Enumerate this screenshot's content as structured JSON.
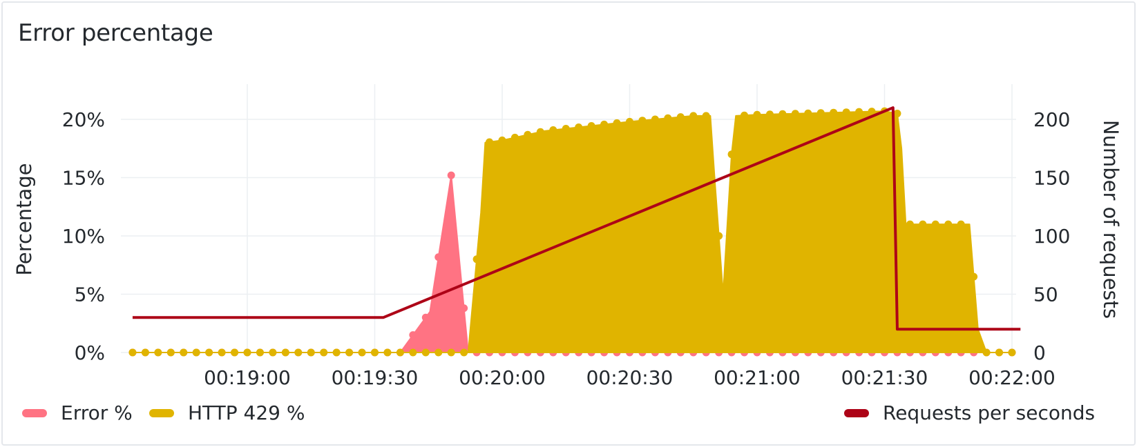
{
  "panel": {
    "title": "Error percentage"
  },
  "colors": {
    "error": "#ff7383",
    "http429": "#e0b400",
    "requests": "#ad0317",
    "grid": "#eceff2",
    "text": "#24292e"
  },
  "chart_data": {
    "type": "area",
    "title": "Error percentage",
    "x_ticks": [
      "00:19:00",
      "00:19:30",
      "00:20:00",
      "00:20:30",
      "00:21:00",
      "00:21:30",
      "00:22:00"
    ],
    "x_range": [
      "00:18:33",
      "00:22:00"
    ],
    "y_left": {
      "label": "Percentage",
      "ylim": [
        0,
        20
      ],
      "ticks": [
        "0%",
        "5%",
        "10%",
        "15%",
        "20%"
      ]
    },
    "y_right": {
      "label": "Number of requests",
      "ylim": [
        0,
        200
      ],
      "ticks": [
        "0",
        "50",
        "100",
        "150",
        "200"
      ]
    },
    "legend_position": "bottom",
    "series": [
      {
        "name": "Error %",
        "axis": "left",
        "kind": "area",
        "points": [
          [
            "00:18:33",
            0
          ],
          [
            "00:19:36",
            0
          ],
          [
            "00:19:43",
            3.5
          ],
          [
            "00:19:48",
            15.2
          ],
          [
            "00:19:52",
            0
          ],
          [
            "00:22:00",
            0
          ]
        ]
      },
      {
        "name": "HTTP 429 %",
        "axis": "left",
        "kind": "area",
        "points": [
          [
            "00:18:33",
            0
          ],
          [
            "00:19:52",
            0
          ],
          [
            "00:19:55",
            12
          ],
          [
            "00:19:56",
            18
          ],
          [
            "00:20:00",
            18.2
          ],
          [
            "00:20:10",
            19
          ],
          [
            "00:20:30",
            19.8
          ],
          [
            "00:20:45",
            20.3
          ],
          [
            "00:20:49",
            20.3
          ],
          [
            "00:20:50",
            15
          ],
          [
            "00:20:52",
            5
          ],
          [
            "00:20:54",
            17
          ],
          [
            "00:20:55",
            20.3
          ],
          [
            "00:21:00",
            20.4
          ],
          [
            "00:21:30",
            20.7
          ],
          [
            "00:21:33",
            20.5
          ],
          [
            "00:21:34",
            17.5
          ],
          [
            "00:21:35",
            11
          ],
          [
            "00:21:50",
            11
          ],
          [
            "00:21:52",
            2
          ],
          [
            "00:21:54",
            0
          ],
          [
            "00:22:00",
            0
          ]
        ]
      },
      {
        "name": "Requests per seconds",
        "axis": "right",
        "kind": "line",
        "points": [
          [
            "00:18:33",
            30
          ],
          [
            "00:19:32",
            30
          ],
          [
            "00:21:32",
            210
          ],
          [
            "00:21:33",
            20
          ],
          [
            "00:22:02",
            20
          ]
        ]
      }
    ]
  },
  "legend": {
    "error_label": "Error %",
    "http429_label": "HTTP 429 %",
    "requests_label": "Requests per seconds"
  }
}
